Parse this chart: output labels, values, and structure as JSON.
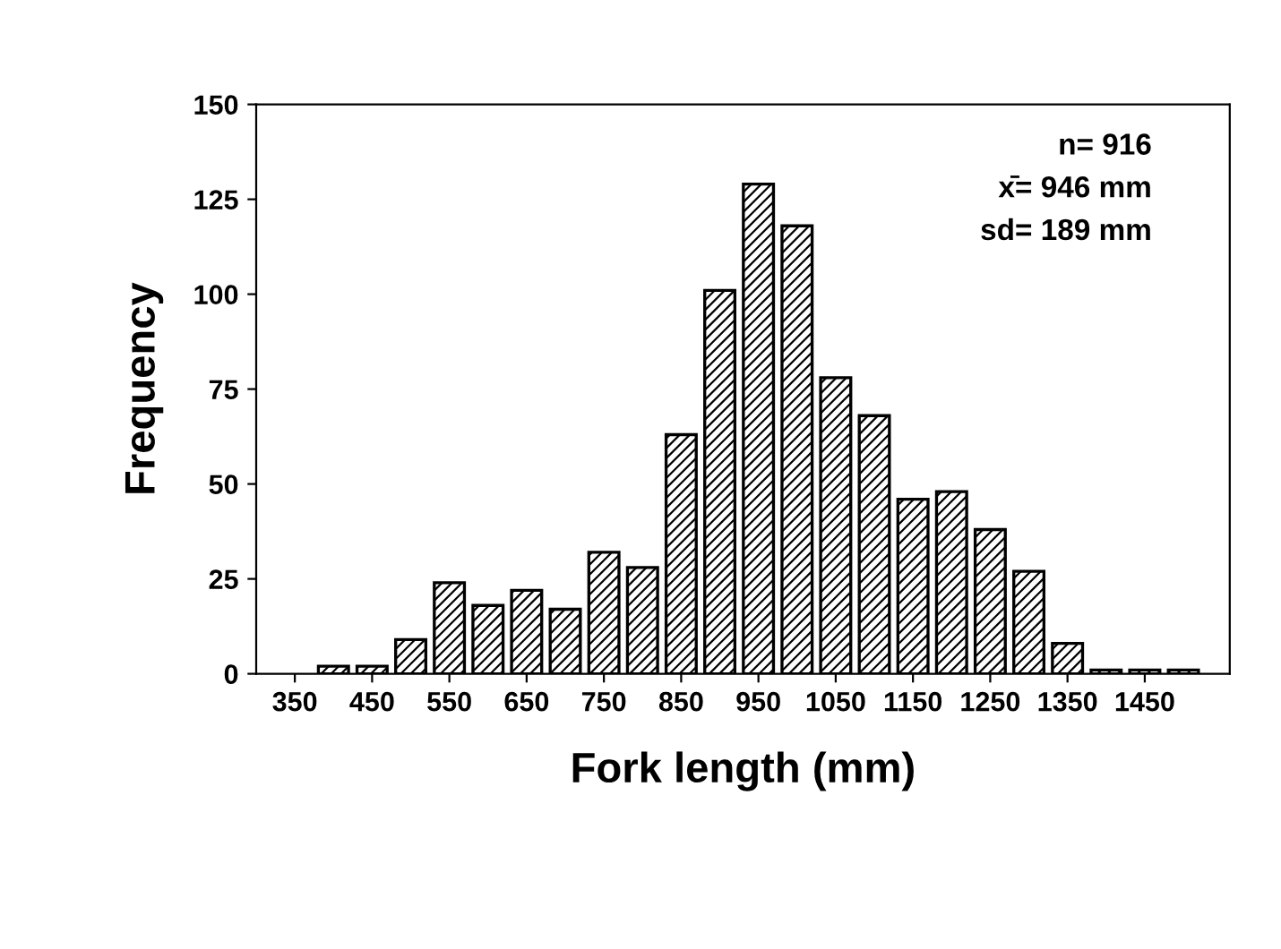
{
  "chart_data": {
    "type": "bar",
    "xlabel": "Fork length (mm)",
    "ylabel": "Frequency",
    "x": [
      400,
      450,
      500,
      550,
      600,
      650,
      700,
      750,
      800,
      850,
      900,
      950,
      1000,
      1050,
      1100,
      1150,
      1200,
      1250,
      1300,
      1350,
      1400,
      1450,
      1500
    ],
    "values": [
      2,
      2,
      9,
      24,
      18,
      22,
      17,
      32,
      28,
      63,
      101,
      129,
      118,
      78,
      68,
      46,
      48,
      38,
      27,
      8,
      1,
      1,
      1
    ],
    "color": "#000000",
    "xlim": [
      300,
      1560
    ],
    "xticks": [
      350,
      450,
      550,
      650,
      750,
      850,
      950,
      1050,
      1150,
      1250,
      1350,
      1450
    ],
    "ylim": [
      0,
      150
    ],
    "yticks": [
      0,
      25,
      50,
      75,
      100,
      125,
      150
    ],
    "grid": false,
    "annotations": [
      "n= 916",
      "x̄= 946 mm",
      "sd= 189 mm"
    ]
  }
}
